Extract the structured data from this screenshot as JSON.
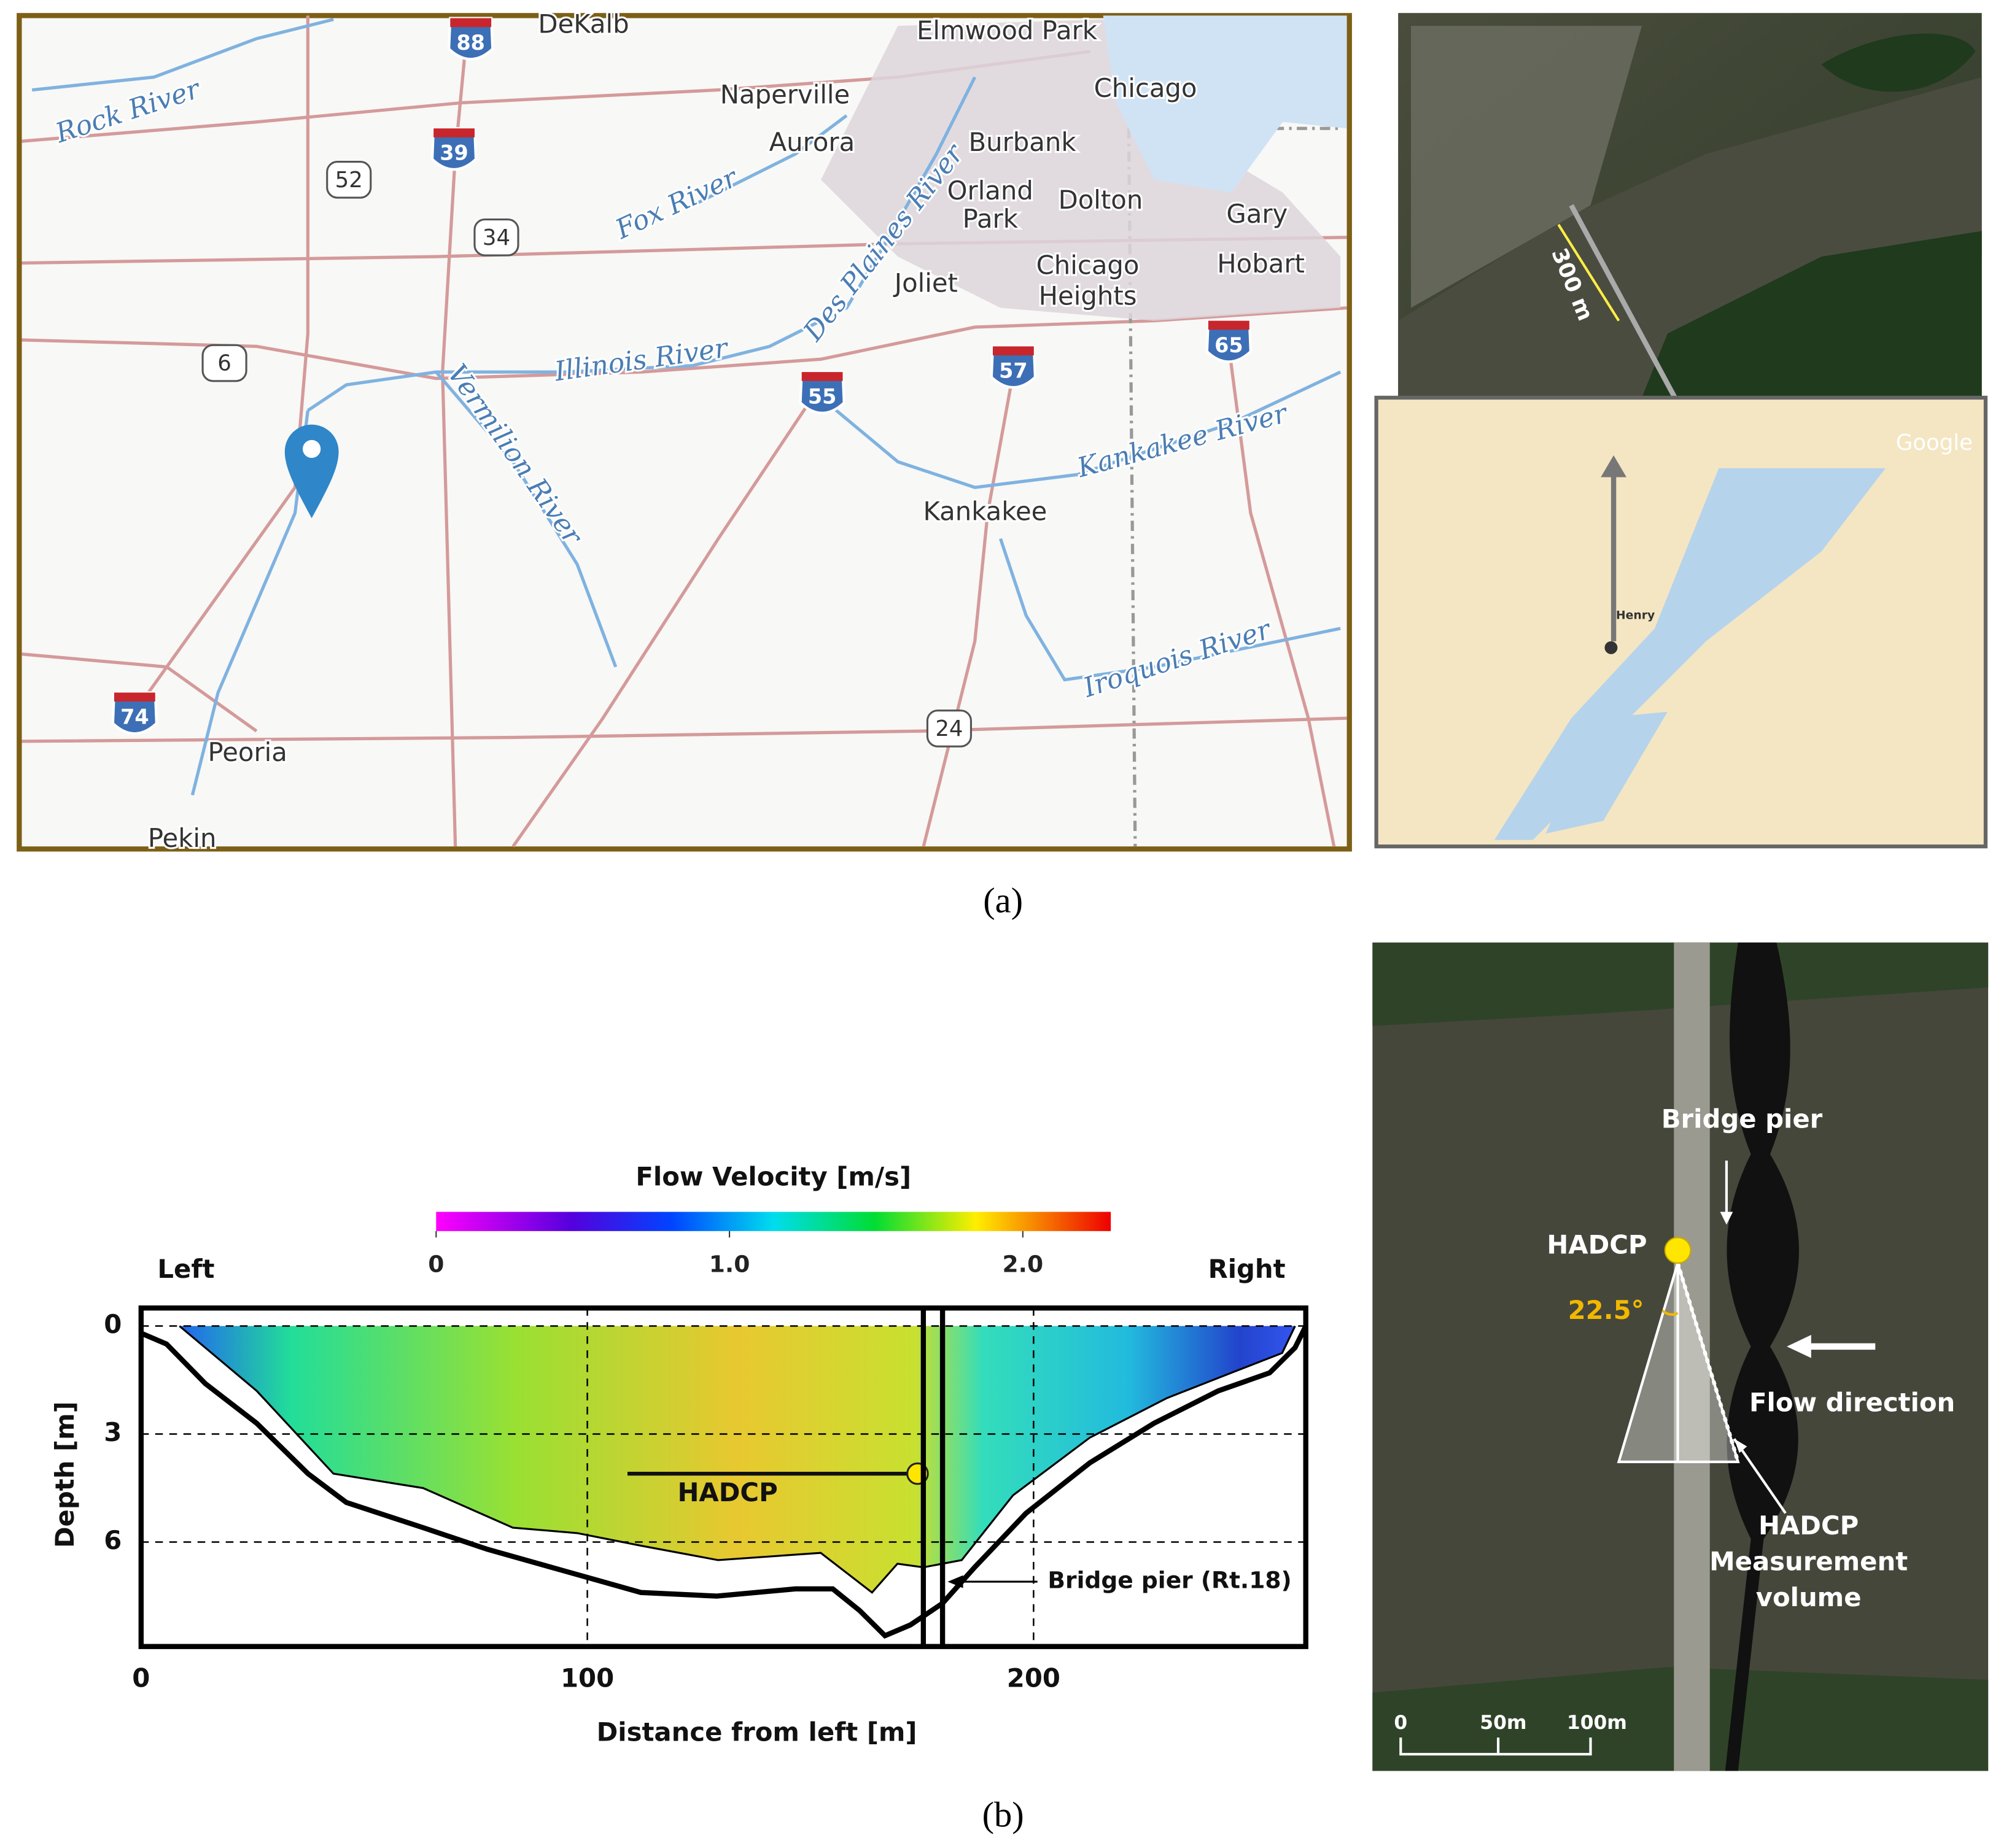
{
  "panel_a": {
    "places": [
      "DeKalb",
      "Elmwood Park",
      "Naperville",
      "Chicago",
      "Aurora",
      "Burbank",
      "Orland",
      "Park",
      "Dolton",
      "Gary",
      "Chicago",
      "Heights",
      "Hobart",
      "Joliet",
      "Kankakee",
      "Peoria",
      "Pekin"
    ],
    "rivers": [
      "Rock River",
      "Fox River",
      "Des Plaines River",
      "Illinois River",
      "Vermilion River",
      "Kankakee River",
      "Iroquois River"
    ],
    "interstates": [
      "88",
      "39",
      "55",
      "57",
      "65",
      "74"
    ],
    "us_routes": [
      "52",
      "34",
      "6",
      "24"
    ],
    "satellite_scale": "300 m",
    "credit": "Google",
    "inset_place": "Henry",
    "caption": "(a)"
  },
  "chart_data": {
    "type": "section",
    "colorbar": {
      "title": "Flow Velocity [m/s]",
      "lim": [
        0,
        2.3
      ],
      "ticks": [
        0,
        {
          "value": 1,
          "label": "1.0"
        },
        {
          "value": 2,
          "label": "2.0"
        }
      ]
    },
    "xlabel": "Distance from left [m]",
    "ylabel": "Depth [m]",
    "left_label": "Left",
    "right_label": "Right",
    "xlim": [
      0,
      261
    ],
    "ylim": [
      -0.5,
      8.9
    ],
    "xticks": [
      0,
      100,
      200
    ],
    "yticks": [
      0,
      3,
      6
    ],
    "grid": true,
    "bed": {
      "x": [
        0,
        5.7,
        14.4,
        25.9,
        37.4,
        46,
        63.2,
        77.6,
        94.8,
        112,
        129,
        146.6,
        155,
        161,
        166.7,
        172.4,
        179.6,
        186.8,
        198.3,
        212.6,
        227,
        241.4,
        252.9,
        258.6,
        261
      ],
      "y": [
        0.2,
        0.5,
        1.6,
        2.7,
        4.1,
        4.9,
        5.6,
        6.2,
        6.8,
        7.4,
        7.5,
        7.3,
        7.3,
        7.9,
        8.6,
        8.3,
        7.7,
        6.7,
        5.2,
        3.8,
        2.7,
        1.8,
        1.3,
        0.6,
        0
      ]
    },
    "measured_bottom": {
      "x": [
        8.6,
        25.9,
        43.1,
        63.2,
        83.3,
        97.7,
        112,
        129.3,
        152.3,
        163.8,
        169.5,
        175.3,
        183.9,
        195.4,
        212.6,
        229.9,
        244.3,
        255.7,
        258.6
      ],
      "y": [
        0,
        1.8,
        4.1,
        4.5,
        5.6,
        5.75,
        6.1,
        6.5,
        6.3,
        7.4,
        6.6,
        6.7,
        6.5,
        4.7,
        3.1,
        2,
        1.3,
        0.75,
        0
      ]
    },
    "hadcp": {
      "label": "HADCP",
      "x": 174,
      "depth": 4.1,
      "beam_start": 109
    },
    "pier": {
      "label": "Bridge pier (Rt.18)",
      "x": [
        175.3,
        179.6
      ]
    }
  },
  "panel_b_photo": {
    "bridge_pier": "Bridge pier",
    "hadcp": "HADCP",
    "angle": "22.5°",
    "flow": "Flow direction",
    "volume": [
      "HADCP",
      "Measurement",
      "volume"
    ],
    "scale": [
      "0",
      "50m",
      "100m"
    ],
    "caption": "(b)"
  }
}
